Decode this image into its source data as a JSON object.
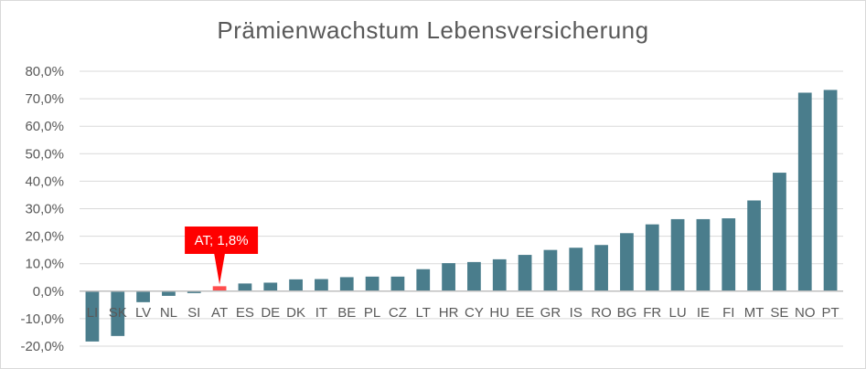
{
  "chart_data": {
    "type": "bar",
    "title": "Prämienwachstum Lebensversicherung",
    "xlabel": "",
    "ylabel": "",
    "ylim": [
      -0.2,
      0.8
    ],
    "ytick_step": 0.1,
    "ytick_labels": [
      "-20,0%",
      "-10,0%",
      "0,0%",
      "10,0%",
      "20,0%",
      "30,0%",
      "40,0%",
      "50,0%",
      "60,0%",
      "70,0%",
      "80,0%"
    ],
    "grid": true,
    "legend": "none",
    "categories": [
      "LI",
      "SK",
      "LV",
      "NL",
      "SI",
      "AT",
      "ES",
      "DE",
      "DK",
      "IT",
      "BE",
      "PL",
      "CZ",
      "LT",
      "HR",
      "CY",
      "HU",
      "EE",
      "GR",
      "IS",
      "RO",
      "BG",
      "FR",
      "LU",
      "IE",
      "FI",
      "MT",
      "SE",
      "NO",
      "PT"
    ],
    "values": [
      -0.183,
      -0.163,
      -0.04,
      -0.017,
      -0.007,
      0.018,
      0.028,
      0.031,
      0.043,
      0.044,
      0.051,
      0.053,
      0.053,
      0.08,
      0.102,
      0.106,
      0.116,
      0.132,
      0.15,
      0.158,
      0.168,
      0.211,
      0.243,
      0.262,
      0.262,
      0.265,
      0.33,
      0.431,
      0.722,
      0.732
    ],
    "highlight": {
      "category": "AT",
      "label": "AT; 1,8%"
    },
    "colors": {
      "bar": "#4a7d8c",
      "highlight": "#ff4d4d",
      "callout": "#ff0000",
      "grid": "#d9d9d9",
      "axis": "#bfbfbf",
      "text": "#595959"
    }
  }
}
